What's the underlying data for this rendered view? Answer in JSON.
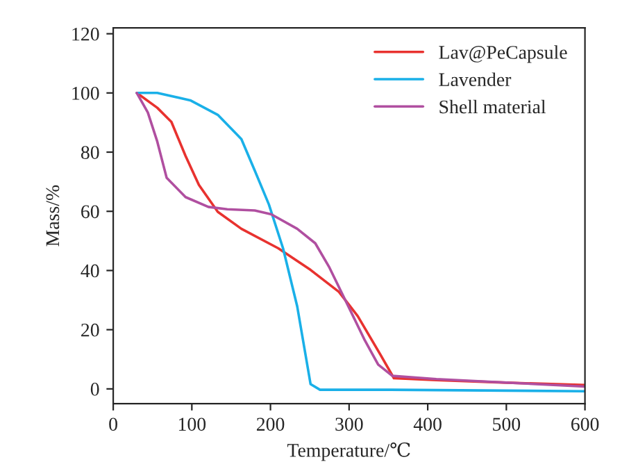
{
  "chart_data": {
    "type": "line",
    "xlabel": "Temperature/℃",
    "ylabel": "Mass/%",
    "xlim": [
      0,
      600
    ],
    "xticks": [
      0,
      100,
      200,
      300,
      400,
      500,
      600
    ],
    "ylim": [
      -5,
      122
    ],
    "yticks": [
      0,
      20,
      40,
      60,
      80,
      100,
      120
    ],
    "grid": false,
    "legend": "top right",
    "marker": "none",
    "line_style": "solid",
    "series": [
      {
        "name": "Lav@PeCapsule",
        "color": "#e8322f",
        "x": [
          30,
          56,
          74,
          92,
          109,
          133,
          163,
          210,
          251,
          287,
          311,
          340,
          357,
          411,
          500,
          600
        ],
        "values": [
          100,
          95,
          90.2,
          78.7,
          68.9,
          59.8,
          54.1,
          47.5,
          40.2,
          32.8,
          24.6,
          11.5,
          3.6,
          3,
          2.1,
          1.3
        ]
      },
      {
        "name": "Lavender",
        "color": "#1ab0e8",
        "x": [
          30,
          56,
          98,
          133,
          163,
          180,
          198,
          216,
          234,
          251,
          263,
          352,
          600
        ],
        "values": [
          100,
          100,
          97.5,
          92.6,
          84.4,
          73.8,
          62.3,
          47.5,
          27.9,
          1.6,
          -0.3,
          -0.3,
          -0.8
        ]
      },
      {
        "name": "Shell material",
        "color": "#b04fa0",
        "x": [
          30,
          44,
          56,
          68,
          92,
          121,
          145,
          180,
          201,
          234,
          257,
          275,
          299,
          320,
          337,
          355,
          411,
          600
        ],
        "values": [
          100,
          93.4,
          83.6,
          71.3,
          64.8,
          61.5,
          60.7,
          60.3,
          59,
          54.1,
          49.2,
          41,
          27.9,
          16.4,
          8.2,
          4.4,
          3.3,
          0.8
        ]
      }
    ]
  }
}
